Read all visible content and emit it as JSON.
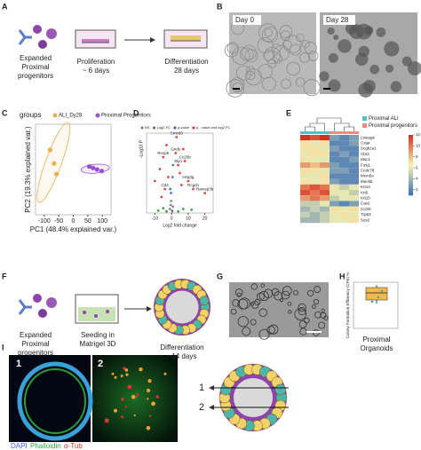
{
  "labels": {
    "A": "A",
    "B": "B",
    "C": "C",
    "D": "D",
    "E": "E",
    "F": "F",
    "G": "G",
    "H": "H",
    "I": "I"
  },
  "panel_a": {
    "cells": [
      "Expanded",
      "Proximal",
      "progenitors"
    ],
    "step1": [
      "Proliferation",
      "~ 6 days"
    ],
    "step2": [
      "Differentiation",
      "28 days"
    ]
  },
  "panel_b": {
    "day0": "Day 0",
    "day28": "Day 28"
  },
  "chart_data": [
    {
      "type": "scatter",
      "legend_title": "groups",
      "x_label": "PC1 (48.4% explained var.)",
      "y_label": "PC2 (19.3% explained var.)",
      "xlim": [
        -130,
        130
      ],
      "xticks": [
        -100,
        -50,
        0,
        50,
        100
      ],
      "ylim": [
        -30,
        30
      ],
      "series": [
        {
          "name": "ALI_Dy28",
          "color": "#e6b04a",
          "x": [
            -80,
            -66,
            -58
          ],
          "y": [
            13,
            4,
            -3
          ]
        },
        {
          "name": "Proximal Progenitors",
          "color": "#9b4fd6",
          "x": [
            55,
            68,
            82,
            98
          ],
          "y": [
            2,
            1,
            0,
            -1
          ]
        }
      ]
    },
    {
      "type": "volcano",
      "x_label": "Log2 fold change",
      "y_label": "-Log10 P",
      "xlim": [
        -15,
        25
      ],
      "xticks": [
        -10,
        0,
        10,
        20
      ],
      "ylim": [
        0,
        100
      ],
      "series": [
        {
          "name": "NS",
          "color": "#777777",
          "x": [
            -1,
            -0.5,
            0.3,
            0.8,
            -0.2,
            0.5
          ],
          "y": [
            5,
            10,
            3,
            8,
            15,
            2
          ]
        },
        {
          "name": "Log2 FC",
          "color": "#2e8b3a",
          "x": [
            -8,
            -5,
            4,
            7,
            12,
            -3
          ],
          "y": [
            3,
            6,
            2,
            5,
            4,
            2
          ]
        },
        {
          "name": "p-value",
          "color": "#2f5fc8",
          "x": [
            -0.8,
            0.6,
            -0.3,
            0.9
          ],
          "y": [
            30,
            45,
            25,
            60
          ]
        },
        {
          "name": "p - value and log2 FC",
          "color": "#d62828",
          "x": [
            -10,
            -7,
            -5,
            -4,
            -3,
            -2,
            3,
            4,
            5,
            6,
            8,
            10,
            13,
            20,
            -6,
            2.5,
            7
          ],
          "y": [
            40,
            55,
            70,
            30,
            85,
            45,
            95,
            60,
            50,
            35,
            65,
            40,
            30,
            25,
            20,
            75,
            80
          ],
          "point_labels": [
            null,
            null,
            "Rcsp5",
            "Cd4",
            null,
            null,
            "Cmcd3",
            "Myo",
            null,
            null,
            "Cc20b",
            "Hsq3g",
            "Rcgcb",
            "Ramsp3b",
            null,
            "Gndy",
            null
          ]
        }
      ]
    },
    {
      "type": "heatmap",
      "legend": [
        {
          "name": "Proximal ALI",
          "color": "#4fc3c8"
        },
        {
          "name": "Proximal progenitors",
          "color": "#f08a80"
        }
      ],
      "column_groups": [
        0,
        0,
        0,
        1,
        1,
        1
      ],
      "rows": [
        "Lineage",
        "Cstar",
        "Scgb1a1",
        "Cbr2",
        "Muc1",
        "Foxj1",
        "Ccdc78",
        "Mcm5e",
        "Muc5b",
        "Krt14",
        "Krt5",
        "Krt15",
        "Cav2",
        "Ccl20",
        "Trp63",
        "Sox2"
      ],
      "values": [
        [
          12,
          11,
          12,
          3,
          2,
          3
        ],
        [
          7,
          6,
          7,
          2,
          2,
          3
        ],
        [
          7,
          7,
          6,
          3,
          2,
          2
        ],
        [
          6,
          7,
          7,
          2,
          3,
          2
        ],
        [
          7,
          6,
          6,
          2,
          2,
          3
        ],
        [
          9,
          8,
          9,
          3,
          2,
          2
        ],
        [
          7,
          7,
          6,
          3,
          3,
          2
        ],
        [
          6,
          6,
          7,
          2,
          2,
          2
        ],
        [
          7,
          6,
          7,
          3,
          2,
          2
        ],
        [
          10,
          11,
          10,
          6,
          5,
          6
        ],
        [
          11,
          10,
          11,
          6,
          6,
          5
        ],
        [
          9,
          10,
          9,
          5,
          6,
          6
        ],
        [
          5,
          5,
          6,
          3,
          2,
          3
        ],
        [
          4,
          5,
          4,
          7,
          6,
          7
        ],
        [
          5,
          4,
          5,
          6,
          7,
          6
        ],
        [
          4,
          4,
          5,
          6,
          6,
          7
        ]
      ],
      "zlim": [
        1,
        12
      ],
      "zticks": [
        2,
        4,
        6,
        8,
        10,
        12
      ]
    }
  ],
  "panel_f": {
    "cells": [
      "Expanded",
      "Proximal",
      "progenitors"
    ],
    "step1": [
      "Seeding in",
      "Matrigel 3D"
    ],
    "step2": [
      "Differentiation",
      "~14 days"
    ]
  },
  "panel_h": {
    "y_label": "Colony Formation Efficiency (CFE) %",
    "x_label": [
      "Proximal",
      "Organoids"
    ]
  },
  "panel_i": {
    "sub1": "1",
    "sub2": "2",
    "stains": [
      "DAPI",
      "Phalloidin",
      "α-Tub"
    ],
    "arrows": [
      "1",
      "2"
    ]
  }
}
